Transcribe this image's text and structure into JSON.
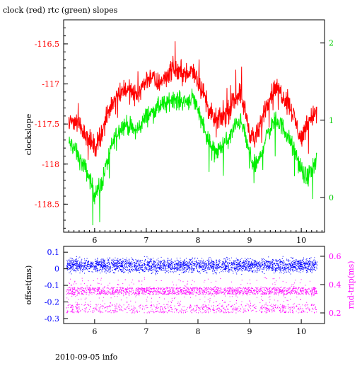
{
  "chart_data": [
    {
      "type": "line",
      "title": "clock (red) rtc (green) slopes",
      "xlabel": "",
      "ylabel": "clockslope",
      "xlim": [
        5.4,
        10.45
      ],
      "ylim": [
        -118.85,
        -116.2
      ],
      "y2lim": [
        -0.45,
        2.3
      ],
      "x_ticks": [
        6,
        7,
        8,
        9,
        10
      ],
      "y_ticks": [
        -116.5,
        -117,
        -117.5,
        -118,
        -118.5
      ],
      "y2_ticks": [
        0,
        1,
        2
      ],
      "colors": {
        "clock": "#ff0000",
        "rtc": "#00ee00",
        "axis_left": "#ff0000",
        "axis_right": "#00cc00"
      },
      "series": [
        {
          "axis": "left",
          "x": [
            5.5,
            5.6,
            5.7,
            5.8,
            5.9,
            6.0,
            6.1,
            6.2,
            6.3,
            6.4,
            6.5,
            6.6,
            6.7,
            6.8,
            6.9,
            7.0,
            7.1,
            7.2,
            7.3,
            7.4,
            7.5,
            7.6,
            7.7,
            7.8,
            7.9,
            8.0,
            8.1,
            8.2,
            8.3,
            8.4,
            8.5,
            8.6,
            8.7,
            8.8,
            8.9,
            9.0,
            9.1,
            9.2,
            9.3,
            9.4,
            9.5,
            9.6,
            9.7,
            9.8,
            9.9,
            10.0,
            10.1,
            10.2,
            10.3
          ],
          "values": [
            -117.5,
            -117.45,
            -117.5,
            -117.6,
            -117.7,
            -117.8,
            -117.65,
            -117.5,
            -117.3,
            -117.15,
            -117.1,
            -117.05,
            -117.1,
            -117.15,
            -117.05,
            -116.95,
            -116.9,
            -117.0,
            -116.95,
            -116.9,
            -116.8,
            -116.85,
            -116.85,
            -116.9,
            -116.8,
            -116.95,
            -117.1,
            -117.3,
            -117.45,
            -117.45,
            -117.4,
            -117.35,
            -117.2,
            -117.1,
            -117.3,
            -117.6,
            -117.7,
            -117.55,
            -117.3,
            -117.15,
            -117.05,
            -117.1,
            -117.2,
            -117.3,
            -117.5,
            -117.7,
            -117.5,
            -117.4,
            -117.35
          ]
        },
        {
          "axis": "right",
          "x": [
            5.5,
            5.6,
            5.7,
            5.8,
            5.9,
            6.0,
            6.1,
            6.2,
            6.3,
            6.4,
            6.5,
            6.6,
            6.7,
            6.8,
            6.9,
            7.0,
            7.1,
            7.2,
            7.3,
            7.4,
            7.5,
            7.6,
            7.7,
            7.8,
            7.9,
            8.0,
            8.1,
            8.2,
            8.3,
            8.4,
            8.5,
            8.6,
            8.7,
            8.8,
            8.9,
            9.0,
            9.1,
            9.2,
            9.3,
            9.4,
            9.5,
            9.6,
            9.7,
            9.8,
            9.9,
            10.0,
            10.1,
            10.2,
            10.3
          ],
          "values": [
            0.7,
            0.65,
            0.5,
            0.4,
            0.25,
            0.05,
            0.1,
            0.35,
            0.6,
            0.8,
            0.9,
            0.95,
            0.9,
            0.85,
            0.95,
            1.05,
            1.1,
            1.15,
            1.2,
            1.2,
            1.3,
            1.25,
            1.25,
            1.25,
            1.3,
            1.15,
            0.95,
            0.75,
            0.6,
            0.6,
            0.7,
            0.75,
            0.9,
            1.0,
            0.85,
            0.55,
            0.4,
            0.5,
            0.75,
            0.9,
            1.0,
            0.95,
            0.85,
            0.7,
            0.55,
            0.35,
            0.25,
            0.35,
            0.5
          ]
        }
      ]
    },
    {
      "type": "scatter",
      "xlabel": "",
      "ylabel": "offset(ms)",
      "y2label": "rnd-trip(ms)",
      "xlim": [
        5.4,
        10.45
      ],
      "ylim": [
        -0.33,
        0.135
      ],
      "y2lim": [
        0.125,
        0.67
      ],
      "x_ticks": [
        6,
        7,
        8,
        9,
        10
      ],
      "y_ticks": [
        0.1,
        0,
        -0.1,
        -0.2,
        -0.3
      ],
      "y2_ticks": [
        0.6,
        0.4,
        0.2
      ],
      "colors": {
        "offset": "#0000ff",
        "rtt": "#ff00ff",
        "axis_left": "#0000ff",
        "axis_right": "#ff00ff"
      },
      "series": [
        {
          "axis": "left",
          "x_range": [
            5.45,
            10.3
          ],
          "center": 0.02,
          "spread": 0.06
        },
        {
          "axis": "right",
          "x_range": [
            5.45,
            10.3
          ],
          "band_main": [
            0.33,
            0.38
          ],
          "band_low": [
            0.2,
            0.26
          ]
        }
      ]
    }
  ],
  "footer": "2010-09-05 info"
}
